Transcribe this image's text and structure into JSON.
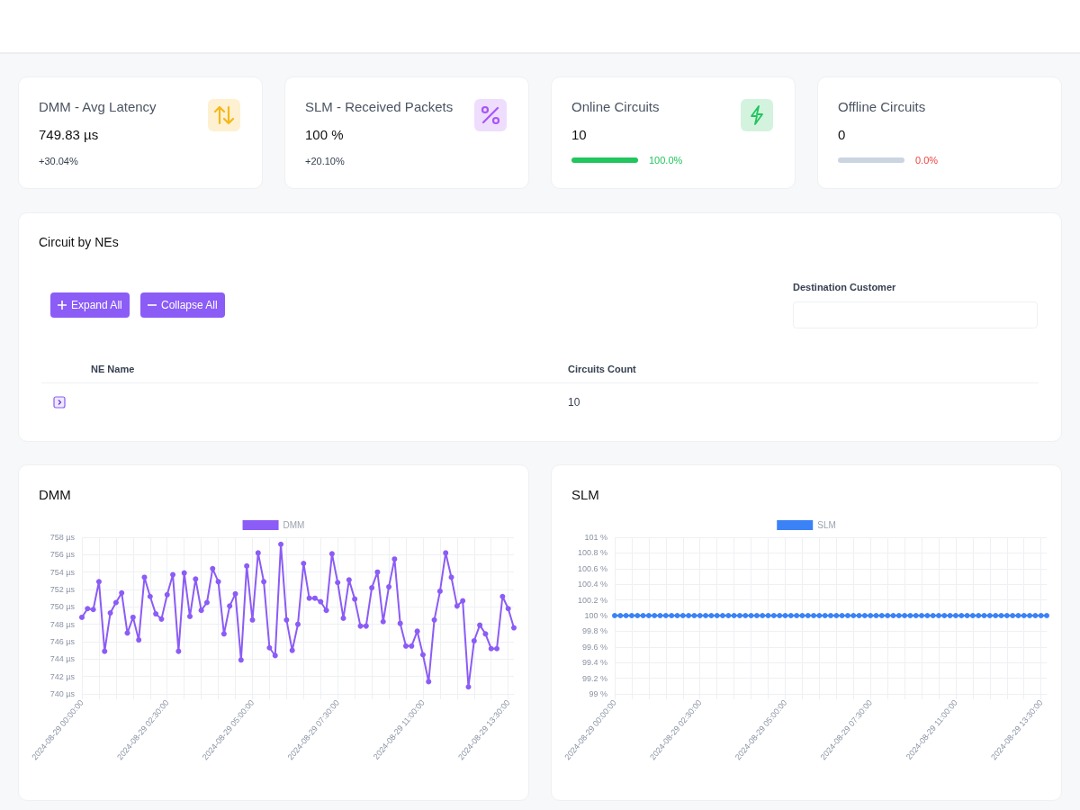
{
  "chart_data": [
    {
      "type": "other",
      "title": "DMM - Avg Latency",
      "annotations": [
        "749.83 µs",
        "+30.04%"
      ],
      "color": "#f5b81c"
    },
    {
      "type": "other",
      "title": "SLM - Received Packets",
      "annotations": [
        "100 %",
        "+20.10%"
      ],
      "color": "#a855f7"
    },
    {
      "type": "other",
      "title": "Online Circuits",
      "annotations": [
        "10",
        "100.0%"
      ],
      "color": "#22c55e"
    },
    {
      "type": "other",
      "title": "Offline Circuits",
      "annotations": [
        "0",
        "0.0%"
      ],
      "color": "#ef4444"
    },
    {
      "type": "other",
      "title": "Circuit by NEs",
      "annotations": [
        "Expand All",
        "Collapse All",
        "Destination Customer",
        "NE Name",
        "Circuits Count",
        "10"
      ]
    },
    {
      "type": "line",
      "title": "DMM",
      "legend": "top",
      "grid": true,
      "marker": "circle",
      "ylim": [
        740,
        758
      ],
      "yticks": [
        {
          "value": 740,
          "label": "740 µs"
        },
        {
          "value": 742,
          "label": "742 µs"
        },
        {
          "value": 744,
          "label": "744 µs"
        },
        {
          "value": 746,
          "label": "746 µs"
        },
        {
          "value": 748,
          "label": "748 µs"
        },
        {
          "value": 750,
          "label": "750 µs"
        },
        {
          "value": 752,
          "label": "752 µs"
        },
        {
          "value": 754,
          "label": "754 µs"
        },
        {
          "value": 756,
          "label": "756 µs"
        },
        {
          "value": 758,
          "label": "758 µs"
        }
      ],
      "categories": [
        "2024-08-29 00:00:00",
        null,
        null,
        null,
        null,
        null,
        null,
        null,
        null,
        null,
        null,
        null,
        null,
        null,
        null,
        "2024-08-29 02:30:00",
        null,
        null,
        null,
        null,
        null,
        null,
        null,
        null,
        null,
        null,
        null,
        null,
        null,
        null,
        "2024-08-29 05:00:00",
        null,
        null,
        null,
        null,
        null,
        null,
        null,
        null,
        null,
        null,
        null,
        null,
        null,
        null,
        "2024-08-29 07:30:00",
        null,
        null,
        null,
        null,
        null,
        null,
        null,
        null,
        null,
        null,
        null,
        null,
        null,
        null,
        "2024-08-29 11:00:00",
        null,
        null,
        null,
        null,
        null,
        null,
        null,
        null,
        null,
        null,
        null,
        null,
        null,
        null,
        "2024-08-29 13:30:00",
        null
      ],
      "series": [
        {
          "name": "DMM",
          "color": "#8b5cf6",
          "values": [
            748.8,
            749.8,
            749.7,
            752.9,
            744.9,
            749.3,
            750.5,
            751.6,
            747.0,
            748.8,
            746.2,
            753.4,
            751.2,
            749.2,
            748.6,
            751.4,
            753.7,
            744.9,
            753.9,
            748.9,
            753.2,
            749.6,
            750.5,
            754.4,
            752.9,
            746.9,
            750.1,
            751.5,
            743.9,
            754.7,
            748.5,
            756.2,
            752.9,
            745.3,
            744.4,
            757.2,
            748.5,
            745.0,
            748.0,
            755.0,
            751.0,
            751.0,
            750.6,
            749.6,
            756.1,
            752.8,
            748.7,
            753.1,
            750.9,
            747.8,
            747.8,
            752.2,
            754.0,
            748.3,
            752.3,
            755.5,
            748.1,
            745.5,
            745.5,
            747.2,
            744.5,
            741.4,
            748.5,
            751.8,
            756.2,
            753.4,
            750.1,
            750.7,
            740.8,
            746.1,
            747.9,
            746.9,
            745.2,
            745.2,
            751.2,
            749.8,
            747.6
          ]
        }
      ]
    },
    {
      "type": "line",
      "title": "SLM",
      "legend": "top",
      "grid": true,
      "marker": "circle",
      "ylim": [
        99,
        101
      ],
      "yticks": [
        {
          "value": 99,
          "label": "99 %"
        },
        {
          "value": 99.2,
          "label": "99.2 %"
        },
        {
          "value": 99.4,
          "label": "99.4 %"
        },
        {
          "value": 99.6,
          "label": "99.6 %"
        },
        {
          "value": 99.8,
          "label": "99.8 %"
        },
        {
          "value": 100,
          "label": "100 %"
        },
        {
          "value": 100.2,
          "label": "100.2 %"
        },
        {
          "value": 100.4,
          "label": "100.4 %"
        },
        {
          "value": 100.6,
          "label": "100.6 %"
        },
        {
          "value": 100.8,
          "label": "100.8 %"
        },
        {
          "value": 101,
          "label": "101 %"
        }
      ],
      "categories": [
        "2024-08-29 00:00:00",
        null,
        null,
        null,
        null,
        null,
        null,
        null,
        null,
        null,
        null,
        null,
        null,
        null,
        null,
        "2024-08-29 02:30:00",
        null,
        null,
        null,
        null,
        null,
        null,
        null,
        null,
        null,
        null,
        null,
        null,
        null,
        null,
        "2024-08-29 05:00:00",
        null,
        null,
        null,
        null,
        null,
        null,
        null,
        null,
        null,
        null,
        null,
        null,
        null,
        null,
        "2024-08-29 07:30:00",
        null,
        null,
        null,
        null,
        null,
        null,
        null,
        null,
        null,
        null,
        null,
        null,
        null,
        null,
        "2024-08-29 11:00:00",
        null,
        null,
        null,
        null,
        null,
        null,
        null,
        null,
        null,
        null,
        null,
        null,
        null,
        null,
        "2024-08-29 13:30:00",
        null
      ],
      "series": [
        {
          "name": "SLM",
          "color": "#3b82f6",
          "values": [
            100,
            100,
            100,
            100,
            100,
            100,
            100,
            100,
            100,
            100,
            100,
            100,
            100,
            100,
            100,
            100,
            100,
            100,
            100,
            100,
            100,
            100,
            100,
            100,
            100,
            100,
            100,
            100,
            100,
            100,
            100,
            100,
            100,
            100,
            100,
            100,
            100,
            100,
            100,
            100,
            100,
            100,
            100,
            100,
            100,
            100,
            100,
            100,
            100,
            100,
            100,
            100,
            100,
            100,
            100,
            100,
            100,
            100,
            100,
            100,
            100,
            100,
            100,
            100,
            100,
            100,
            100,
            100,
            100,
            100,
            100,
            100,
            100,
            100,
            100,
            100,
            100
          ]
        }
      ]
    }
  ]
}
